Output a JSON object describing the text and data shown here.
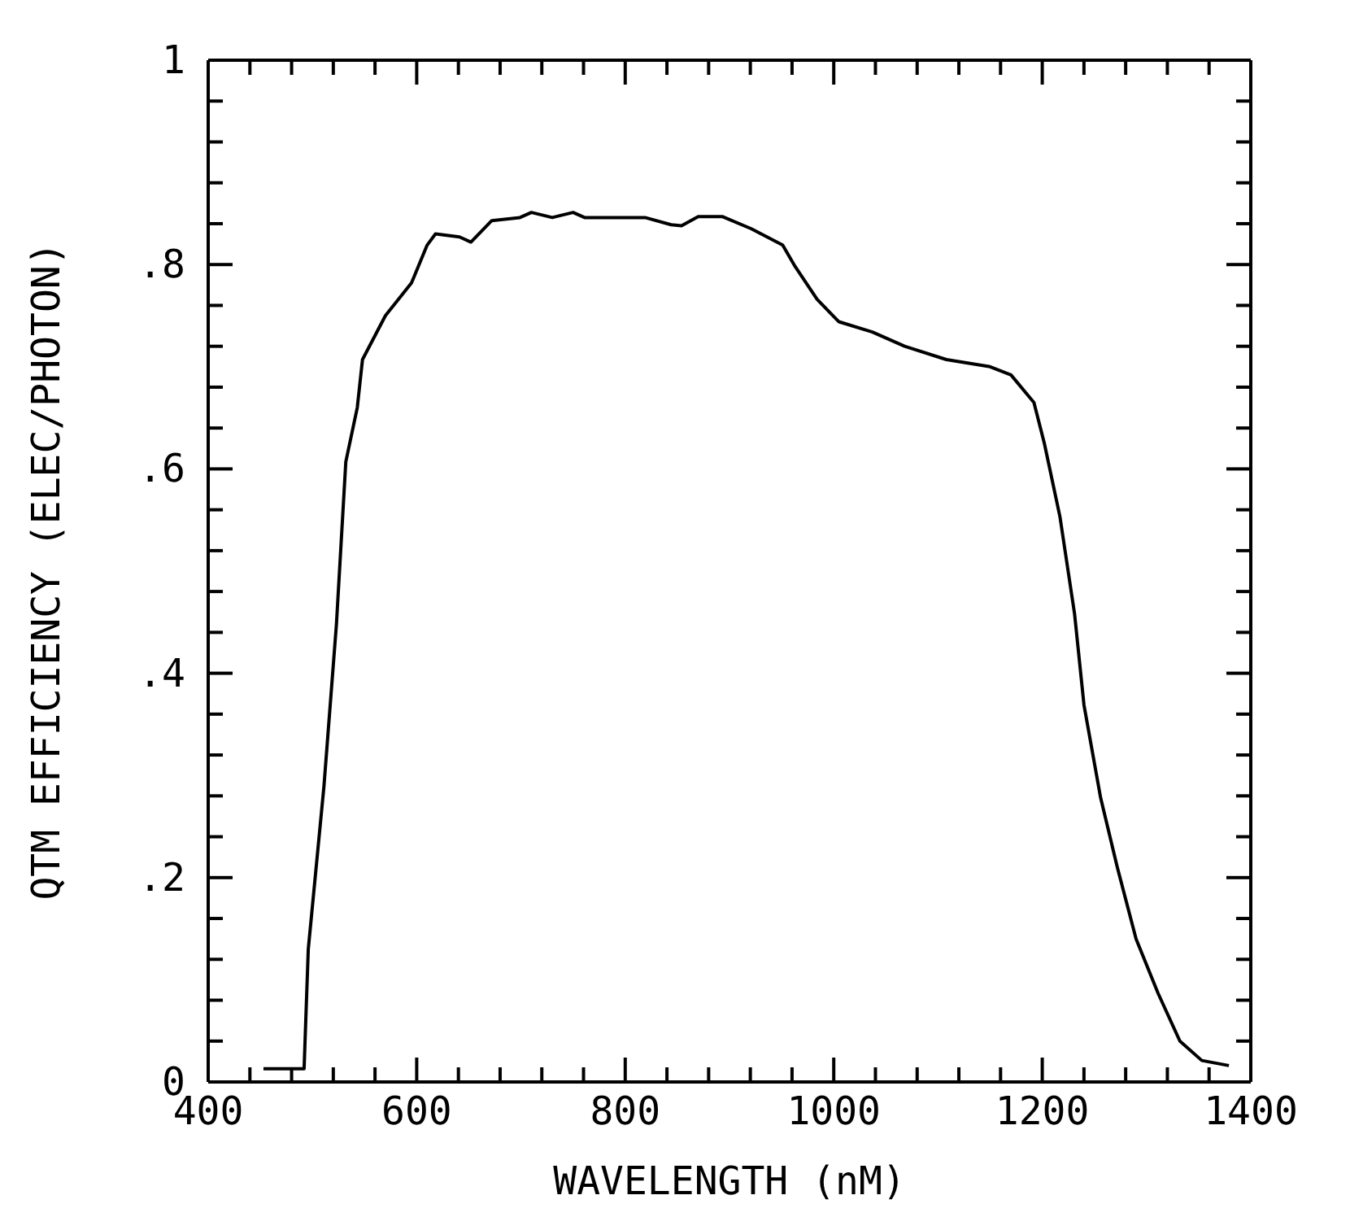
{
  "chart_data": {
    "type": "line",
    "xlabel": "WAVELENGTH (nM)",
    "ylabel": "QTM EFFICIENCY (ELEC/PHOTON)",
    "x": [
      453,
      492,
      493,
      496,
      511,
      523,
      532,
      543,
      548,
      570,
      595,
      610,
      618,
      641,
      652,
      672,
      699,
      710,
      730,
      750,
      761,
      819,
      844,
      854,
      870,
      893,
      921,
      951,
      963,
      984,
      1005,
      1037,
      1068,
      1108,
      1150,
      1170,
      1192,
      1202,
      1217,
      1231,
      1240,
      1256,
      1272,
      1290,
      1311,
      1332,
      1353,
      1379
    ],
    "series": [
      {
        "color": "#000000",
        "values": [
          0.013,
          0.013,
          0.043,
          0.13,
          0.289,
          0.448,
          0.607,
          0.66,
          0.707,
          0.75,
          0.782,
          0.819,
          0.83,
          0.827,
          0.822,
          0.843,
          0.846,
          0.851,
          0.846,
          0.851,
          0.846,
          0.846,
          0.839,
          0.838,
          0.847,
          0.847,
          0.835,
          0.819,
          0.798,
          0.766,
          0.744,
          0.734,
          0.72,
          0.707,
          0.7,
          0.692,
          0.665,
          0.625,
          0.553,
          0.458,
          0.369,
          0.278,
          0.21,
          0.14,
          0.087,
          0.04,
          0.021,
          0.016
        ]
      }
    ],
    "xlim": [
      400,
      1400
    ],
    "xticks": [
      400,
      {
        "value": 440,
        "label": null
      },
      {
        "value": 480,
        "label": null
      },
      {
        "value": 520,
        "label": null
      },
      {
        "value": 560,
        "label": null
      },
      600,
      {
        "value": 640,
        "label": null
      },
      {
        "value": 680,
        "label": null
      },
      {
        "value": 720,
        "label": null
      },
      {
        "value": 760,
        "label": null
      },
      800,
      {
        "value": 840,
        "label": null
      },
      {
        "value": 880,
        "label": null
      },
      {
        "value": 920,
        "label": null
      },
      {
        "value": 960,
        "label": null
      },
      1000,
      {
        "value": 1040,
        "label": null
      },
      {
        "value": 1080,
        "label": null
      },
      {
        "value": 1120,
        "label": null
      },
      {
        "value": 1160,
        "label": null
      },
      1200,
      {
        "value": 1240,
        "label": null
      },
      {
        "value": 1280,
        "label": null
      },
      {
        "value": 1320,
        "label": null
      },
      {
        "value": 1360,
        "label": null
      },
      1400
    ],
    "ylim": [
      0,
      1
    ],
    "yticks": [
      {
        "value": 0,
        "label": "0"
      },
      {
        "value": 0.04,
        "label": null
      },
      {
        "value": 0.08,
        "label": null
      },
      {
        "value": 0.12,
        "label": null
      },
      {
        "value": 0.16,
        "label": null
      },
      {
        "value": 0.2,
        "label": ".2"
      },
      {
        "value": 0.24,
        "label": null
      },
      {
        "value": 0.28,
        "label": null
      },
      {
        "value": 0.32,
        "label": null
      },
      {
        "value": 0.36,
        "label": null
      },
      {
        "value": 0.4,
        "label": ".4"
      },
      {
        "value": 0.44,
        "label": null
      },
      {
        "value": 0.48,
        "label": null
      },
      {
        "value": 0.52,
        "label": null
      },
      {
        "value": 0.56,
        "label": null
      },
      {
        "value": 0.6,
        "label": ".6"
      },
      {
        "value": 0.64,
        "label": null
      },
      {
        "value": 0.68,
        "label": null
      },
      {
        "value": 0.72,
        "label": null
      },
      {
        "value": 0.76,
        "label": null
      },
      {
        "value": 0.8,
        "label": ".8"
      },
      {
        "value": 0.84,
        "label": null
      },
      {
        "value": 0.88,
        "label": null
      },
      {
        "value": 0.92,
        "label": null
      },
      {
        "value": 0.96,
        "label": null
      },
      {
        "value": 1,
        "label": "1"
      }
    ]
  }
}
